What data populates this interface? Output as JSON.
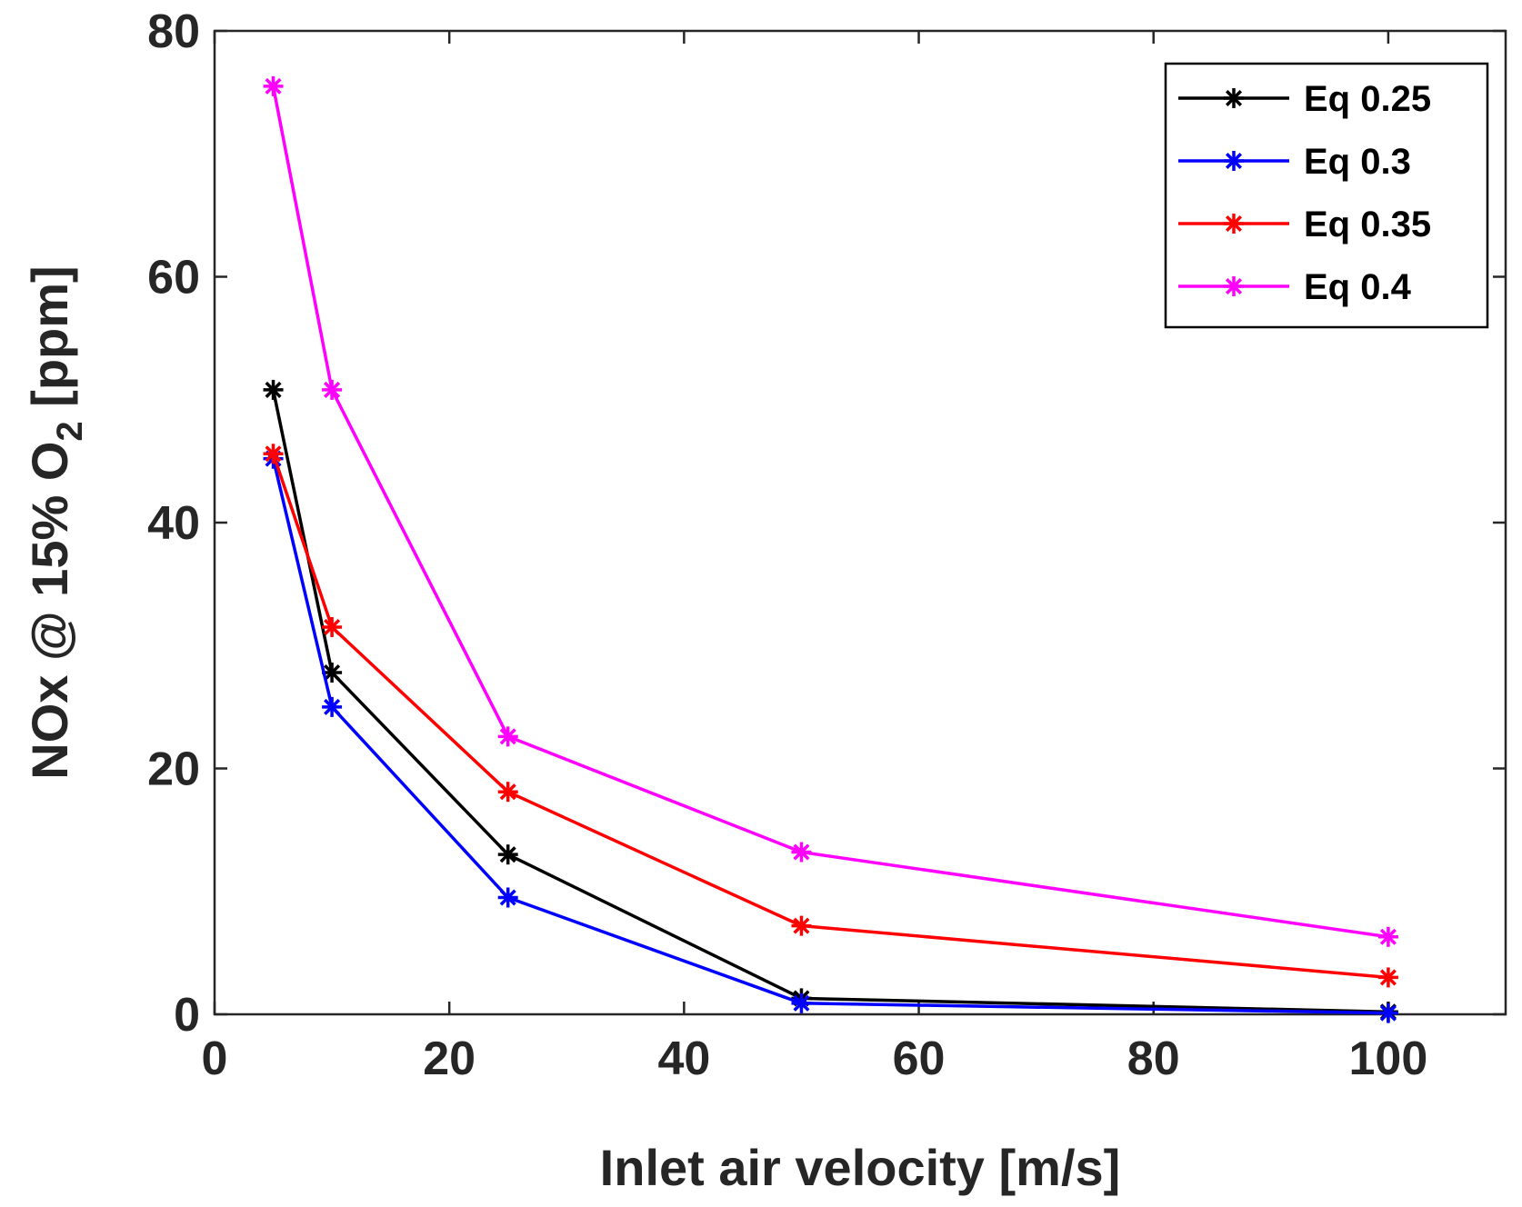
{
  "chart_data": {
    "type": "line",
    "title": "",
    "xlabel": "Inlet air velocity [m/s]",
    "ylabel": {
      "main": "NOx @ 15% O",
      "subscript": "2",
      "unit": " [ppm]"
    },
    "xlim": [
      0,
      110
    ],
    "ylim": [
      0,
      80
    ],
    "xticks": [
      0,
      20,
      40,
      60,
      80,
      100
    ],
    "yticks": [
      0,
      20,
      40,
      60,
      80
    ],
    "xtick_labels": [
      "0",
      "20",
      "40",
      "60",
      "80",
      "100"
    ],
    "ytick_labels": [
      "0",
      "20",
      "40",
      "60",
      "80"
    ],
    "grid": false,
    "legend_position": "top-right",
    "marker": "asterisk",
    "x": [
      5,
      10,
      25,
      50,
      100
    ],
    "series": [
      {
        "name": "Eq 0.25",
        "color": "#000000",
        "values": [
          50.8,
          27.8,
          13.0,
          1.3,
          0.2
        ]
      },
      {
        "name": "Eq 0.3",
        "color": "#0000ff",
        "values": [
          45.2,
          25.0,
          9.5,
          0.9,
          0.1
        ]
      },
      {
        "name": "Eq 0.35",
        "color": "#ff0000",
        "values": [
          45.6,
          31.5,
          18.1,
          7.2,
          3.0
        ]
      },
      {
        "name": "Eq 0.4",
        "color": "#ff00ff",
        "values": [
          75.5,
          50.8,
          22.6,
          13.2,
          6.3
        ]
      }
    ]
  }
}
